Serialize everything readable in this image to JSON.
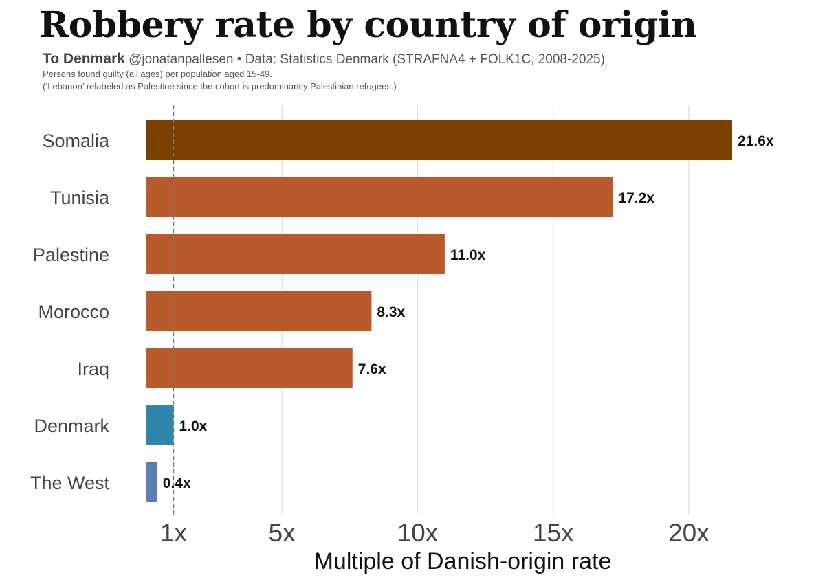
{
  "header": {
    "title": "Robbery rate by country of origin",
    "brand": "To Denmark",
    "source": " @jonatanpallesen • Data: Statistics Denmark (STRAFNA4 + FOLK1C, 2008-2025)",
    "note1": "Persons found guilty (all ages) per population aged 15-49.",
    "note2": "(‘Lebanon’ relabeled as Palestine since the cohort is predominantly Palestinian refugees.)"
  },
  "chart_data": {
    "type": "bar",
    "orientation": "horizontal",
    "categories": [
      "Somalia",
      "Tunisia",
      "Palestine",
      "Morocco",
      "Iraq",
      "Denmark",
      "The West"
    ],
    "values": [
      21.6,
      17.2,
      11.0,
      8.3,
      7.6,
      1.0,
      0.4
    ],
    "value_labels": [
      "21.6x",
      "17.2x",
      "11.0x",
      "8.3x",
      "7.6x",
      "1.0x",
      "0.4x"
    ],
    "colors": [
      "#7b3f00",
      "#b85a29",
      "#b85a29",
      "#b85a29",
      "#b85a29",
      "#2e86ab",
      "#5a7fb5"
    ],
    "xlabel": "Multiple of Danish-origin rate",
    "xticks": [
      1,
      5,
      10,
      15,
      20
    ],
    "xtick_labels": [
      "1x",
      "5x",
      "10x",
      "15x",
      "20x"
    ],
    "xlim": [
      0,
      22.5
    ],
    "reference_line": 1,
    "grid": "vertical"
  }
}
